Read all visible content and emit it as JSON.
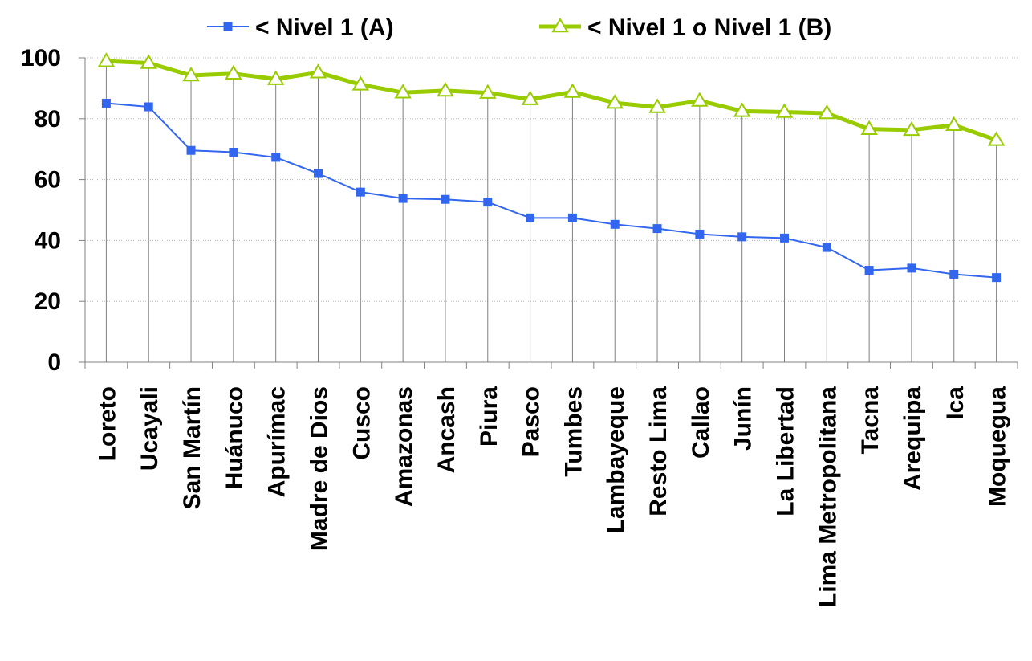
{
  "chart_data": {
    "type": "line",
    "categories": [
      "Loreto",
      "Ucayali",
      "San Martín",
      "Huánuco",
      "Apurímac",
      "Madre de Dios",
      "Cusco",
      "Amazonas",
      "Ancash",
      "Piura",
      "Pasco",
      "Tumbes",
      "Lambayeque",
      "Resto Lima",
      "Callao",
      "Junín",
      "La Libertad",
      "Lima Metropolitana",
      "Tacna",
      "Arequipa",
      "Ica",
      "Moquegua"
    ],
    "series": [
      {
        "name": "< Nivel 1 (A)",
        "color": "#3366ee",
        "marker": "square",
        "values": [
          85.1,
          83.9,
          69.6,
          69.0,
          67.3,
          62.0,
          55.9,
          53.8,
          53.5,
          52.6,
          47.4,
          47.4,
          45.3,
          43.9,
          42.1,
          41.2,
          40.8,
          37.7,
          30.2,
          30.9,
          28.9,
          27.8
        ]
      },
      {
        "name": "< Nivel 1 o Nivel 1 (B)",
        "color": "#99cc00",
        "marker": "triangle-open",
        "values": [
          98.9,
          98.3,
          94.2,
          94.8,
          93.0,
          95.2,
          91.2,
          88.6,
          89.2,
          88.5,
          86.4,
          88.8,
          85.2,
          83.8,
          85.9,
          82.5,
          82.2,
          81.8,
          76.6,
          76.3,
          77.9,
          73.0
        ]
      }
    ],
    "ylim": [
      0,
      100
    ],
    "yticks": [
      "0",
      "20",
      "40",
      "60",
      "80",
      "100"
    ],
    "grid": true,
    "drop_lines": true,
    "legend_position": "top",
    "xlabel": "",
    "ylabel": "",
    "title": ""
  }
}
